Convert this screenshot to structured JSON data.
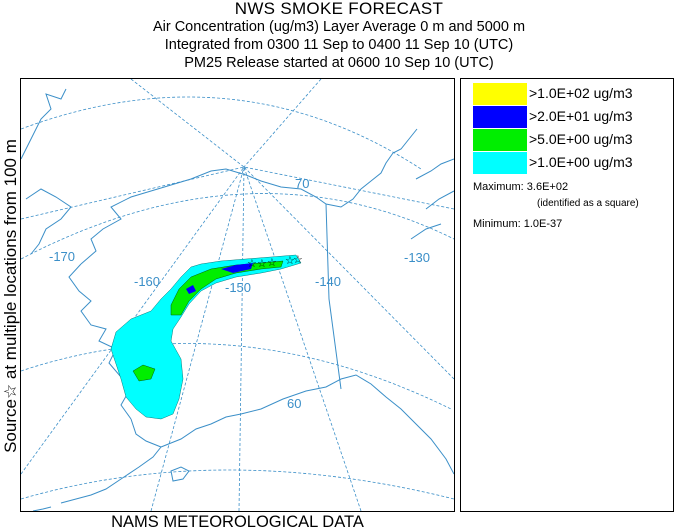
{
  "header": {
    "title": "NWS SMOKE FORECAST",
    "line1": "Air Concentration (ug/m3) Layer Average    0 m and  5000 m",
    "line2": "Integrated from 0300 11 Sep to 0400 11 Sep 10 (UTC)",
    "line3": "PM25 Release started at 0600 10 Sep 10 (UTC)"
  },
  "side_label": "Source☆  at multiple locations   from  100 m",
  "footer": "NAMS METEOROLOGICAL DATA",
  "map": {
    "lon_labels": [
      "-170",
      "-160",
      "-150",
      "-140",
      "-130"
    ],
    "lat_labels": [
      "70",
      "60"
    ],
    "colors": {
      "coast": "#3b8fc8",
      "grid": "#3b8fc8"
    }
  },
  "legend": {
    "items": [
      {
        "label": ">1.0E+02 ug/m3",
        "color": "#ffff00"
      },
      {
        "label": ">2.0E+01 ug/m3",
        "color": "#0000ff"
      },
      {
        "label": ">5.0E+00 ug/m3",
        "color": "#00ee00"
      },
      {
        "label": ">1.0E+00 ug/m3",
        "color": "#00ffff"
      }
    ],
    "maximum": "Maximum: 3.6E+02",
    "maximum_note": "(identified as a square)",
    "minimum": "Minimum: 1.0E-37"
  }
}
